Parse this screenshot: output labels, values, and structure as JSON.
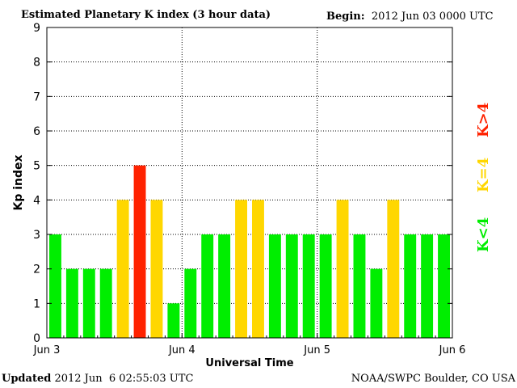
{
  "header": {
    "title": "Estimated Planetary K index (3 hour data)",
    "begin_label": "Begin:",
    "begin_value": "2012 Jun 03 0000 UTC"
  },
  "footer": {
    "updated_label": "Updated",
    "updated_value": "2012 Jun  6 02:55:03 UTC",
    "credit": "NOAA/SWPC Boulder, CO USA"
  },
  "legend": {
    "items": [
      {
        "label": "K<4",
        "color": "#00ee00"
      },
      {
        "label": "K=4",
        "color": "#ffd700"
      },
      {
        "label": "K>4",
        "color": "#ff2200"
      }
    ]
  },
  "chart_data": {
    "type": "bar",
    "xlabel": "Universal Time",
    "ylabel": "Kp index",
    "ylim": [
      0,
      9
    ],
    "yticks": [
      0,
      1,
      2,
      3,
      4,
      5,
      6,
      7,
      8,
      9
    ],
    "x_tick_labels": [
      "Jun 3",
      "Jun 4",
      "Jun 5",
      "Jun 6"
    ],
    "grid": "dotted, at day boundaries and integer Kp levels",
    "colors": {
      "low": "#00ee00",
      "equal": "#ffd700",
      "high": "#ff2200"
    },
    "values": [
      3,
      2,
      2,
      2,
      4,
      5,
      4,
      1,
      2,
      3,
      3,
      4,
      4,
      3,
      3,
      3,
      3,
      4,
      3,
      2,
      4,
      3,
      3,
      3
    ]
  }
}
